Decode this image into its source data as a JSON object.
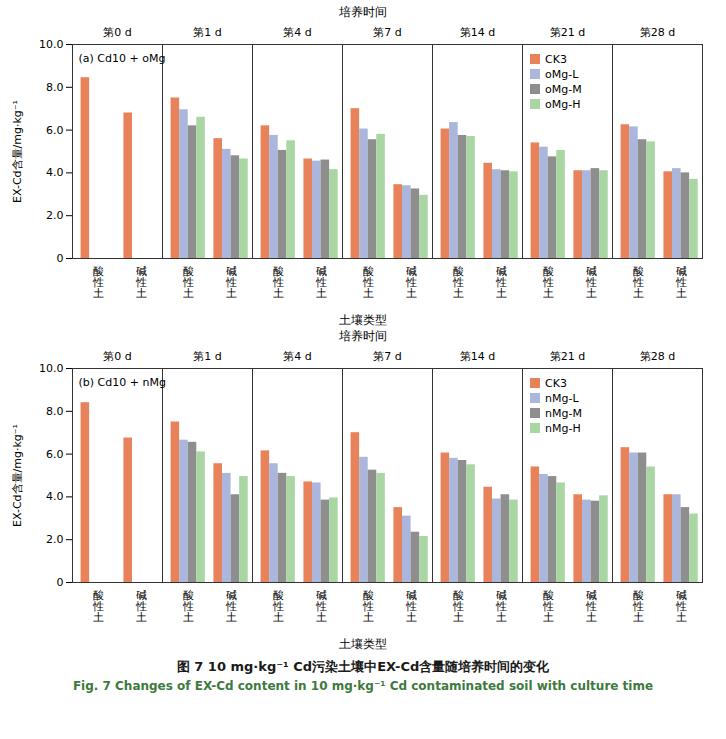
{
  "chart_data": [
    {
      "type": "bar",
      "title": "(a) Cd10 + oMg",
      "x_group_label": "培养时间",
      "groups": [
        "第0 d",
        "第1 d",
        "第4 d",
        "第7 d",
        "第14 d",
        "第21 d",
        "第28 d"
      ],
      "categories": [
        "酸性土",
        "碱性土"
      ],
      "x_label": "土壤类型",
      "y_label": "EX-Cd含量/mg·kg⁻¹",
      "ylim": [
        0,
        10
      ],
      "yticks": [
        0,
        {
          "value": 2,
          "label": "2.0"
        },
        {
          "value": 4,
          "label": "4.0"
        },
        {
          "value": 6,
          "label": "6.0"
        },
        {
          "value": 8,
          "label": "8.0"
        },
        {
          "value": 10,
          "label": "10.0"
        }
      ],
      "grid": false,
      "legend": "top-right",
      "series": [
        {
          "name": "CK3",
          "color": "#e8825a",
          "values": [
            [
              8.45,
              6.8
            ],
            [
              7.5,
              5.6
            ],
            [
              6.2,
              4.65
            ],
            [
              7.0,
              3.45
            ],
            [
              6.05,
              4.45
            ],
            [
              5.4,
              4.1
            ],
            [
              6.25,
              4.05
            ]
          ]
        },
        {
          "name": "oMg-L",
          "color": "#aab6dc",
          "values": [
            [
              null,
              null
            ],
            [
              6.95,
              5.1
            ],
            [
              5.75,
              4.55
            ],
            [
              6.05,
              3.4
            ],
            [
              6.35,
              4.15
            ],
            [
              5.2,
              4.1
            ],
            [
              6.15,
              4.2
            ]
          ]
        },
        {
          "name": "oMg-M",
          "color": "#8e8e8e",
          "values": [
            [
              null,
              null
            ],
            [
              6.2,
              4.8
            ],
            [
              5.05,
              4.6
            ],
            [
              5.55,
              3.25
            ],
            [
              5.75,
              4.1
            ],
            [
              4.75,
              4.2
            ],
            [
              5.55,
              4.0
            ]
          ]
        },
        {
          "name": "oMg-H",
          "color": "#a9d6a3",
          "values": [
            [
              null,
              null
            ],
            [
              6.6,
              4.65
            ],
            [
              5.5,
              4.15
            ],
            [
              5.8,
              2.95
            ],
            [
              5.7,
              4.05
            ],
            [
              5.05,
              4.1
            ],
            [
              5.45,
              3.7
            ]
          ]
        }
      ]
    },
    {
      "type": "bar",
      "title": "(b) Cd10 + nMg",
      "x_group_label": "培养时间",
      "groups": [
        "第0 d",
        "第1 d",
        "第4 d",
        "第7 d",
        "第14 d",
        "第21 d",
        "第28 d"
      ],
      "categories": [
        "酸性土",
        "碱性土"
      ],
      "x_label": "土壤类型",
      "y_label": "EX-Cd含量/mg·kg⁻¹",
      "ylim": [
        0,
        10
      ],
      "yticks": [
        0,
        {
          "value": 2,
          "label": "2.0"
        },
        {
          "value": 4,
          "label": "4.0"
        },
        {
          "value": 6,
          "label": "6.0"
        },
        {
          "value": 8,
          "label": "8.0"
        },
        {
          "value": 10,
          "label": "10.0"
        }
      ],
      "grid": false,
      "legend": "top-right",
      "series": [
        {
          "name": "CK3",
          "color": "#e8825a",
          "values": [
            [
              8.4,
              6.75
            ],
            [
              7.5,
              5.55
            ],
            [
              6.15,
              4.7
            ],
            [
              7.0,
              3.5
            ],
            [
              6.05,
              4.45
            ],
            [
              5.4,
              4.1
            ],
            [
              6.3,
              4.1
            ]
          ]
        },
        {
          "name": "nMg-L",
          "color": "#aab6dc",
          "values": [
            [
              null,
              null
            ],
            [
              6.65,
              5.1
            ],
            [
              5.55,
              4.65
            ],
            [
              5.85,
              3.1
            ],
            [
              5.8,
              3.9
            ],
            [
              5.05,
              3.85
            ],
            [
              6.05,
              4.1
            ]
          ]
        },
        {
          "name": "nMg-M",
          "color": "#8e8e8e",
          "values": [
            [
              null,
              null
            ],
            [
              6.55,
              4.1
            ],
            [
              5.1,
              3.85
            ],
            [
              5.25,
              2.35
            ],
            [
              5.7,
              4.1
            ],
            [
              4.95,
              3.8
            ],
            [
              6.05,
              3.5
            ]
          ]
        },
        {
          "name": "nMg-H",
          "color": "#a9d6a3",
          "values": [
            [
              null,
              null
            ],
            [
              6.1,
              4.95
            ],
            [
              4.95,
              3.95
            ],
            [
              5.1,
              2.15
            ],
            [
              5.5,
              3.85
            ],
            [
              4.65,
              4.05
            ],
            [
              5.4,
              3.2
            ]
          ]
        }
      ]
    }
  ],
  "caption": {
    "zh": "图 7 10 mg·kg⁻¹ Cd污染土壤中EX-Cd含量随培养时间的变化",
    "en": "Fig. 7 Changes of EX-Cd content in 10 mg·kg⁻¹ Cd contaminated soil with culture time"
  }
}
